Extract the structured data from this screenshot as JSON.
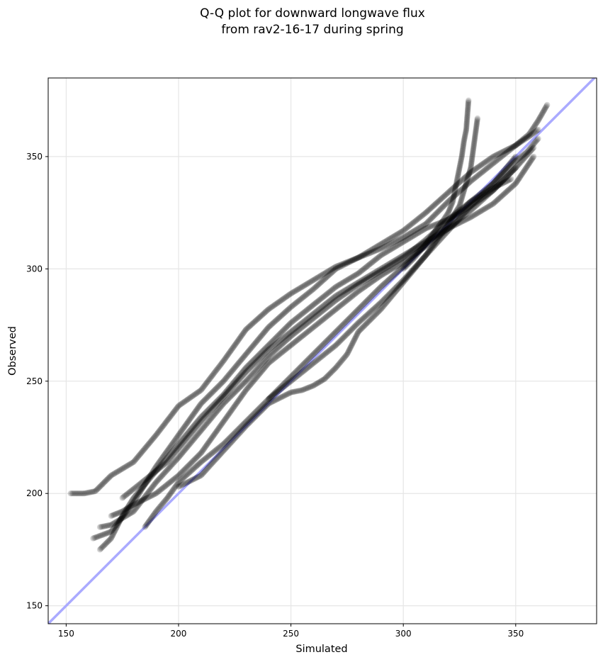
{
  "chart_data": {
    "type": "scatter",
    "title_lines": [
      "Q-Q plot for downward longwave flux",
      "from rav2-16-17 during spring"
    ],
    "xlabel": "Simulated",
    "ylabel": "Observed",
    "xlim": [
      142,
      386
    ],
    "ylim": [
      142,
      385
    ],
    "xticks": [
      150,
      200,
      250,
      300,
      350
    ],
    "yticks": [
      150,
      200,
      250,
      300,
      350
    ],
    "xtick_labels": [
      "150",
      "200",
      "250",
      "300",
      "350"
    ],
    "ytick_labels": [
      "150",
      "200",
      "250",
      "300",
      "350"
    ],
    "grid": true,
    "reference_line": {
      "label": "1:1 line",
      "color": "#aaaaff",
      "from": [
        142,
        142
      ],
      "to": [
        386,
        386
      ]
    },
    "marker_color": "#000000",
    "marker_alpha": 0.15,
    "series": [
      {
        "x": [
          152,
          155,
          158,
          163,
          170,
          180,
          190,
          200,
          210,
          220,
          230,
          240,
          250,
          260,
          270,
          280,
          290,
          300,
          310,
          320,
          330,
          340,
          350,
          356,
          360,
          364
        ],
        "y": [
          200,
          200,
          200,
          201,
          208,
          214,
          226,
          239,
          246,
          259,
          273,
          282,
          289,
          295,
          301,
          305,
          309,
          314,
          320,
          330,
          339,
          347,
          355,
          360,
          366,
          373
        ]
      },
      {
        "x": [
          162,
          170,
          180,
          190,
          200,
          210,
          220,
          230,
          240,
          250,
          260,
          270,
          280,
          290,
          300,
          310,
          320,
          330,
          340,
          350,
          356,
          360
        ],
        "y": [
          180,
          183,
          196,
          212,
          226,
          240,
          250,
          262,
          274,
          283,
          291,
          300,
          305,
          311,
          317,
          325,
          334,
          343,
          350,
          355,
          359,
          362
        ]
      },
      {
        "x": [
          165,
          170,
          180,
          190,
          200,
          210,
          220,
          230,
          240,
          250,
          260,
          270,
          280,
          290,
          300,
          310,
          320,
          330,
          340,
          350,
          355,
          360
        ],
        "y": [
          185,
          186,
          192,
          205,
          216,
          228,
          240,
          250,
          261,
          270,
          278,
          286,
          293,
          299,
          305,
          313,
          322,
          330,
          338,
          348,
          352,
          358
        ]
      },
      {
        "x": [
          170,
          175,
          180,
          190,
          200,
          210,
          220,
          230,
          240,
          250,
          260,
          270,
          280,
          290,
          300,
          310,
          320,
          330,
          340,
          350,
          358
        ],
        "y": [
          190,
          192,
          195,
          200,
          208,
          218,
          232,
          246,
          258,
          266,
          274,
          282,
          290,
          297,
          303,
          310,
          318,
          326,
          335,
          345,
          354
        ]
      },
      {
        "x": [
          185,
          190,
          195,
          200,
          210,
          220,
          230,
          240,
          250,
          260,
          270,
          280,
          290,
          300,
          310,
          320,
          330,
          340,
          350
        ],
        "y": [
          185,
          192,
          198,
          205,
          214,
          222,
          232,
          242,
          250,
          258,
          266,
          276,
          285,
          295,
          306,
          317,
          328,
          338,
          350
        ]
      },
      {
        "x": [
          200,
          210,
          220,
          230,
          240,
          250,
          255,
          260,
          265,
          270,
          275,
          280,
          290,
          300,
          310,
          320,
          330,
          340,
          348
        ],
        "y": [
          203,
          208,
          219,
          230,
          240,
          245,
          246,
          248,
          251,
          256,
          262,
          272,
          282,
          294,
          306,
          320,
          330,
          336,
          340
        ]
      },
      {
        "x": [
          175,
          185,
          195,
          200,
          210,
          220,
          230,
          240,
          250,
          260,
          270,
          280,
          290,
          300,
          310,
          320,
          330,
          340,
          350,
          358
        ],
        "y": [
          198,
          206,
          214,
          220,
          232,
          243,
          254,
          264,
          272,
          280,
          288,
          294,
          300,
          306,
          312,
          318,
          323,
          329,
          338,
          350
        ]
      },
      {
        "x": [
          165,
          170,
          175,
          180,
          190,
          200,
          210,
          220,
          230,
          240,
          250,
          260,
          270,
          280,
          290,
          300,
          310,
          320,
          330,
          340,
          350
        ],
        "y": [
          175,
          180,
          190,
          198,
          210,
          222,
          234,
          244,
          256,
          266,
          276,
          284,
          292,
          298,
          306,
          312,
          318,
          322,
          328,
          335,
          345
        ]
      },
      {
        "x": [
          300,
          305,
          310,
          315,
          318,
          320,
          322,
          324,
          326,
          327,
          328,
          329
        ],
        "y": [
          300,
          305,
          311,
          318,
          322,
          325,
          330,
          340,
          350,
          357,
          362,
          375
        ]
      },
      {
        "x": [
          240,
          250,
          260,
          270,
          280,
          290,
          300,
          310,
          320,
          325,
          330,
          333
        ],
        "y": [
          242,
          252,
          262,
          272,
          282,
          292,
          301,
          311,
          320,
          328,
          345,
          367
        ]
      }
    ]
  }
}
